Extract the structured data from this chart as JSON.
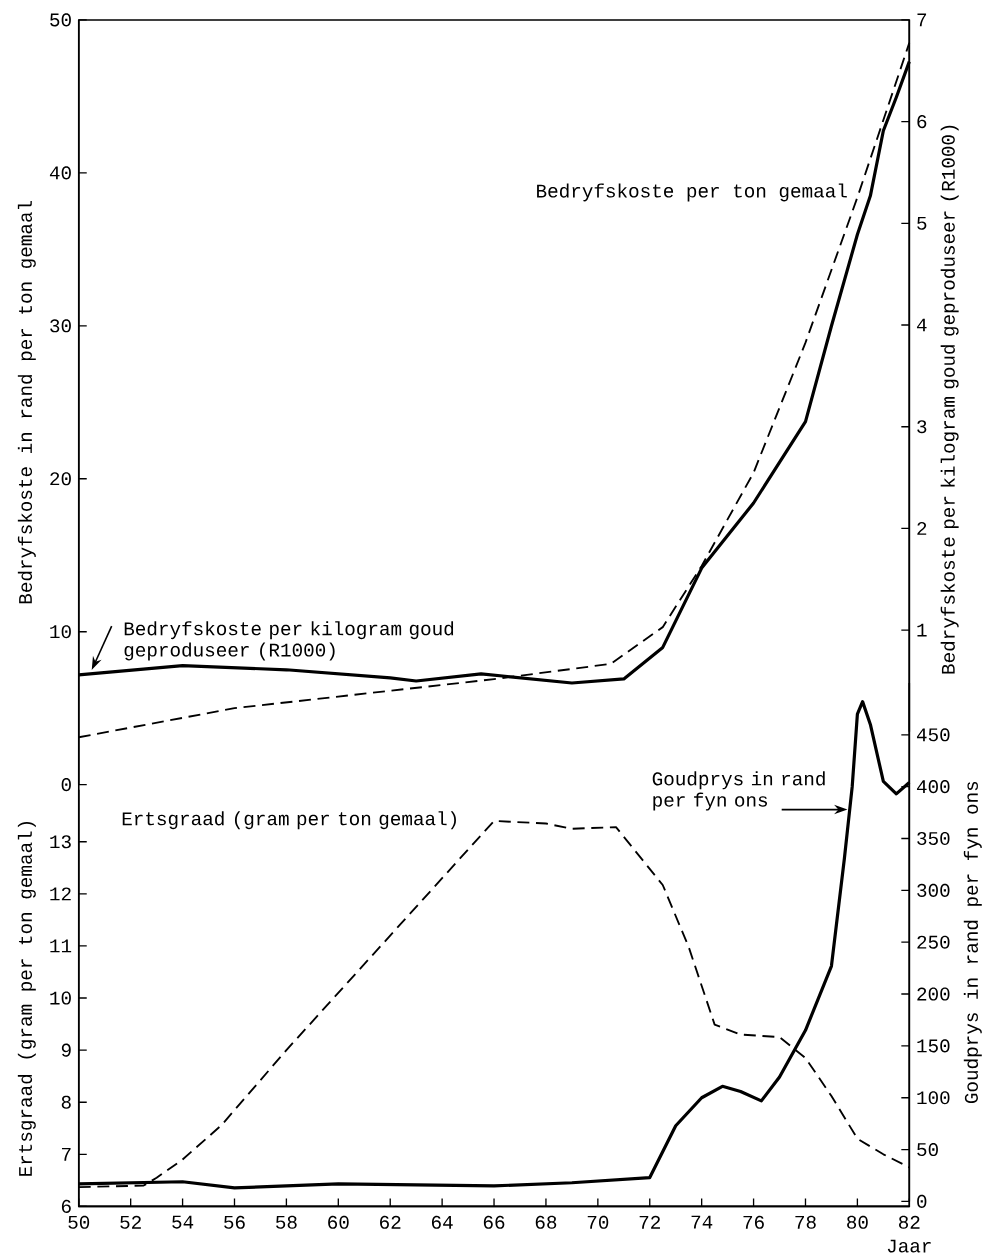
{
  "chart_data": [
    {
      "type": "line",
      "xlim": [
        50,
        82
      ],
      "ylim": [
        0,
        50
      ],
      "yticks": [
        0,
        10,
        20,
        30,
        40,
        50
      ],
      "y2lim": [
        0,
        7
      ],
      "y2ticks": [
        1,
        2,
        3,
        4,
        5,
        6,
        7
      ],
      "ylabel": "Bedryfskoste in rand per ton gemaal",
      "y2label": "Bedryfskoste per kilogram goud geproduseer (R1000)",
      "tick_labels": [
        "y",
        "y2"
      ],
      "series": [
        {
          "name": "Bedryfskoste per ton gemaal",
          "color": "#000000",
          "line_style": "dashed",
          "x": [
            50,
            56,
            66,
            70.5,
            72.5,
            74,
            76,
            78,
            80,
            82
          ],
          "values": [
            3.1,
            5.0,
            6.9,
            7.9,
            10.3,
            14.3,
            20.4,
            28.9,
            38.4,
            48.5
          ]
        },
        {
          "name": "Bedryfskoste per kilogram goud geproduseer (R1000)",
          "color": "#000000",
          "line_style": "solid",
          "axis": "y2",
          "x": [
            50,
            54,
            58,
            62,
            63,
            65.5,
            69,
            71,
            72.5,
            74,
            76,
            78,
            79,
            80,
            80.5,
            81,
            81.5,
            82
          ],
          "values": [
            0.56,
            0.65,
            0.61,
            0.53,
            0.5,
            0.57,
            0.48,
            0.52,
            0.83,
            1.61,
            2.25,
            3.05,
            3.99,
            4.89,
            5.27,
            5.91,
            6.24,
            6.59
          ]
        }
      ]
    },
    {
      "type": "line",
      "xlim": [
        50,
        82
      ],
      "xticks": [
        50,
        52,
        54,
        56,
        58,
        60,
        62,
        64,
        66,
        68,
        70,
        72,
        74,
        76,
        78,
        80,
        82
      ],
      "xlabel": "Jaar",
      "ylim": [
        6,
        14
      ],
      "yticks": [
        6,
        7,
        8,
        9,
        10,
        11,
        12,
        13
      ],
      "y2lim": [
        0,
        500
      ],
      "y2ticks": [
        0,
        50,
        100,
        150,
        200,
        250,
        300,
        350,
        400,
        450
      ],
      "ylabel": "Ertsgraad (gram per ton gemaal)",
      "y2label": "Goudprys in rand per fyn ons",
      "series": [
        {
          "name": "Ertsgraad (gram per ton gemaal)",
          "color": "#000000",
          "line_style": "dashed",
          "x": [
            50,
            52.5,
            53,
            54,
            55.5,
            58,
            66,
            68,
            69,
            70.7,
            72.5,
            73.5,
            74.5,
            75.5,
            77,
            78,
            79,
            80,
            81,
            82
          ],
          "values": [
            6.37,
            6.4,
            6.55,
            6.9,
            7.56,
            9.0,
            13.4,
            13.35,
            13.25,
            13.28,
            12.17,
            10.98,
            9.49,
            9.3,
            9.25,
            8.85,
            8.12,
            7.3,
            7.0,
            6.75
          ]
        },
        {
          "name": "Goudprys in rand per fyn ons",
          "color": "#000000",
          "line_style": "solid",
          "axis": "y2",
          "x": [
            50,
            54,
            56,
            60,
            66,
            69,
            72,
            73,
            74,
            74.8,
            75.5,
            76.3,
            77,
            78,
            79,
            79.5,
            79.8,
            80,
            80.2,
            80.5,
            81,
            81.5,
            82
          ],
          "values": [
            17,
            19,
            13,
            17,
            15,
            18,
            23,
            73,
            100,
            111,
            106,
            97,
            120,
            165,
            227,
            331,
            400,
            470,
            482,
            460,
            405,
            393,
            404
          ]
        }
      ]
    }
  ]
}
